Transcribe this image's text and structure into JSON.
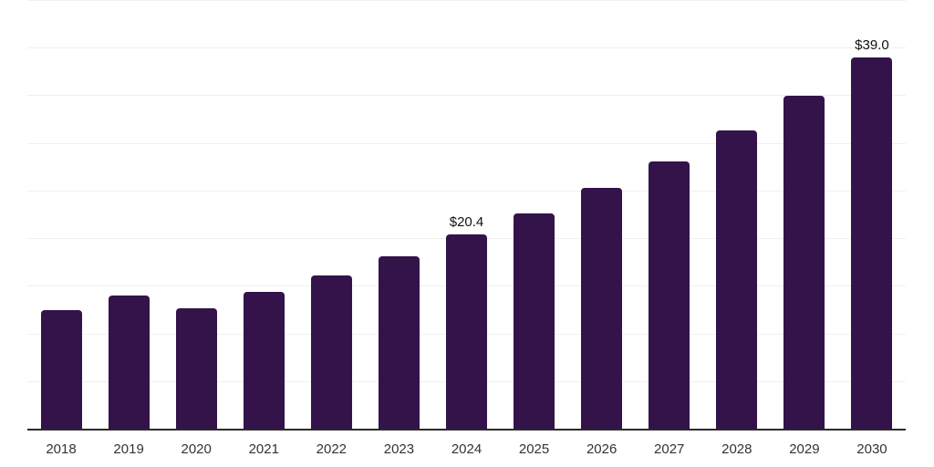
{
  "chart_data": {
    "type": "bar",
    "title": "",
    "xlabel": "",
    "ylabel": "",
    "categories": [
      "2018",
      "2019",
      "2020",
      "2021",
      "2022",
      "2023",
      "2024",
      "2025",
      "2026",
      "2027",
      "2028",
      "2029",
      "2030"
    ],
    "values": [
      12.4,
      14.0,
      12.6,
      14.4,
      16.1,
      18.1,
      20.4,
      22.6,
      25.3,
      28.1,
      31.3,
      34.9,
      39.0
    ],
    "data_labels": {
      "2024": "$20.4",
      "2030": "$39.0"
    },
    "ylim": [
      0,
      45
    ],
    "gridline_step": 5,
    "grid": true,
    "legend": false,
    "bar_color": "#331349",
    "axis_line_color": "#2b2b2b",
    "gridline_color": "#f0f0f0",
    "tick_label_color": "#333333",
    "data_label_color": "#111111"
  }
}
